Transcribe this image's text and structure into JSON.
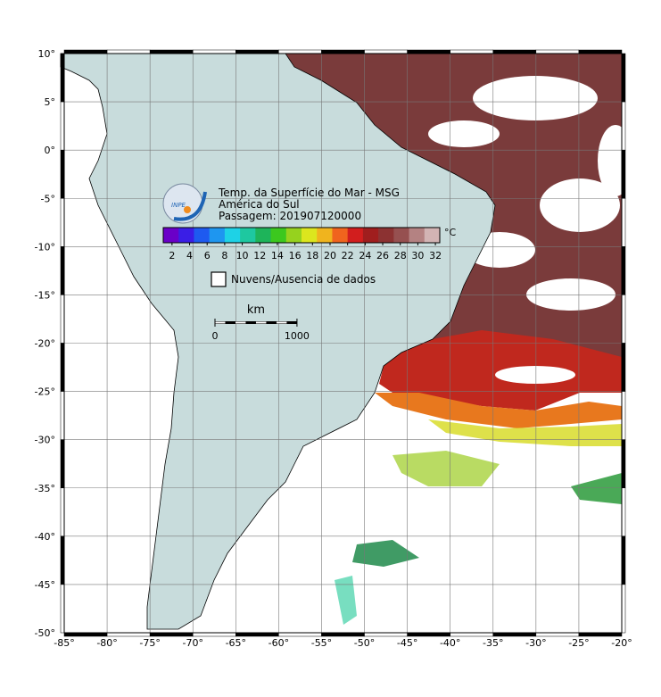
{
  "map": {
    "title": "Temp. da Superfície do Mar - MSG",
    "region": "América do Sul",
    "pass": "Passagem: 201907120000",
    "logo": "INPE",
    "lonlim": [
      -85,
      -20
    ],
    "latlim": [
      -50,
      10
    ],
    "lonticks": [
      {
        "value": -85,
        "label": "-85°"
      },
      {
        "value": -80,
        "label": "-80°"
      },
      {
        "value": -75,
        "label": "-75°"
      },
      {
        "value": -70,
        "label": "-70°"
      },
      {
        "value": -65,
        "label": "-65°"
      },
      {
        "value": -60,
        "label": "-60°"
      },
      {
        "value": -55,
        "label": "-55°"
      },
      {
        "value": -50,
        "label": "-50°"
      },
      {
        "value": -45,
        "label": "-45°"
      },
      {
        "value": -40,
        "label": "-40°"
      },
      {
        "value": -35,
        "label": "-35°"
      },
      {
        "value": -30,
        "label": "-30°"
      },
      {
        "value": -25,
        "label": "-25°"
      },
      {
        "value": -20,
        "label": "-20°"
      }
    ],
    "latticks": [
      {
        "value": 10,
        "label": "10°"
      },
      {
        "value": 5,
        "label": "5°"
      },
      {
        "value": 0,
        "label": "0°"
      },
      {
        "value": -5,
        "label": "-5°"
      },
      {
        "value": -10,
        "label": "-10°"
      },
      {
        "value": -15,
        "label": "-15°"
      },
      {
        "value": -20,
        "label": "-20°"
      },
      {
        "value": -25,
        "label": "-25°"
      },
      {
        "value": -30,
        "label": "-30°"
      },
      {
        "value": -35,
        "label": "-35°"
      },
      {
        "value": -40,
        "label": "-40°"
      },
      {
        "value": -45,
        "label": "-45°"
      },
      {
        "value": -50,
        "label": "-50°"
      }
    ],
    "colorbar": {
      "unit": "°C",
      "lim": [
        1,
        32.5
      ],
      "ticks": [
        2,
        4,
        6,
        8,
        10,
        12,
        14,
        16,
        18,
        20,
        22,
        24,
        26,
        28,
        30,
        32
      ],
      "colors": [
        "#6a00c8",
        "#3a1ee6",
        "#1e5af0",
        "#1e96f0",
        "#1ed2e6",
        "#1ec8a0",
        "#1eb45a",
        "#3cc81e",
        "#96d21e",
        "#dce61e",
        "#f0b41e",
        "#f0641e",
        "#d21e1e",
        "#a01e1e",
        "#8c3232",
        "#965050",
        "#b48282",
        "#d2b4b4"
      ]
    },
    "legend": "Nuvens/Ausencia de dados",
    "scalebar": {
      "unit": "km",
      "ticks": [
        0,
        1000
      ]
    }
  }
}
